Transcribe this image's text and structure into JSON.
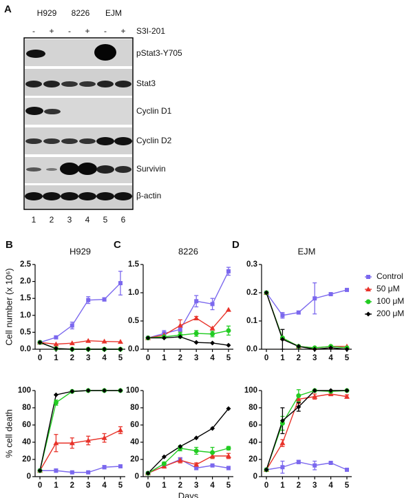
{
  "panel_a": {
    "label": "A",
    "cell_lines": [
      "H929",
      "8226",
      "EJM"
    ],
    "treatment": "S3I-201",
    "treatment_signs": [
      "-",
      "+",
      "-",
      "+",
      "-",
      "+"
    ],
    "blots": [
      "pStat3-Y705",
      "Stat3",
      "Cyclin D1",
      "Cyclin D2",
      "Survivin",
      "β-actin"
    ],
    "lanes": [
      "1",
      "2",
      "3",
      "4",
      "5",
      "6"
    ]
  },
  "chart_data": [
    {
      "type": "line",
      "panel": "B",
      "title": "H929",
      "ylabel": "Cell number (x 10⁶)",
      "x": [
        0,
        1,
        2,
        3,
        4,
        5
      ],
      "xlim": [
        -0.3,
        5.3
      ],
      "xticks": [
        0,
        1,
        2,
        3,
        4,
        5
      ],
      "ylim": [
        0,
        2.5
      ],
      "yticks": [
        {
          "value": 0,
          "label": "0.0"
        },
        0.5,
        {
          "value": 1,
          "label": "1.0"
        },
        1.5,
        {
          "value": 2,
          "label": "2.0"
        },
        2.5
      ],
      "series": [
        {
          "name": "Control",
          "color": "#7b68ee",
          "marker": "square",
          "values": [
            0.2,
            0.35,
            0.7,
            1.45,
            1.47,
            1.95
          ],
          "errors": [
            0,
            0.03,
            0.1,
            0.1,
            0.05,
            0.35
          ]
        },
        {
          "name": "50 μM",
          "color": "#e8332a",
          "marker": "triangle",
          "values": [
            0.2,
            0.15,
            0.18,
            0.25,
            0.23,
            0.22
          ]
        },
        {
          "name": "100 μM",
          "color": "#22cc22",
          "marker": "circle",
          "values": [
            0.2,
            0.02,
            0,
            0,
            0,
            0
          ]
        },
        {
          "name": "200 μM",
          "color": "#000000",
          "marker": "diamond",
          "values": [
            0.2,
            0.02,
            0,
            0,
            0,
            0
          ]
        }
      ]
    },
    {
      "type": "line",
      "panel": "C",
      "title": "8226",
      "x": [
        0,
        1,
        2,
        3,
        4,
        5
      ],
      "xlim": [
        -0.3,
        5.3
      ],
      "xticks": [
        0,
        1,
        2,
        3,
        4,
        5
      ],
      "ylim": [
        0,
        1.5
      ],
      "yticks": [
        {
          "value": 0,
          "label": "0.0"
        },
        0.5,
        {
          "value": 1,
          "label": "1.0"
        },
        1.5
      ],
      "series": [
        {
          "name": "Control",
          "color": "#7b68ee",
          "marker": "square",
          "values": [
            0.2,
            0.28,
            0.35,
            0.85,
            0.8,
            1.38
          ],
          "errors": [
            0,
            0.05,
            0.05,
            0.1,
            0.1,
            0.07
          ]
        },
        {
          "name": "50 μM",
          "color": "#e8332a",
          "marker": "triangle",
          "values": [
            0.2,
            0.25,
            0.42,
            0.55,
            0.37,
            0.7
          ],
          "errors": [
            0,
            0.05,
            0.1,
            0.03,
            0,
            0
          ]
        },
        {
          "name": "100 μM",
          "color": "#22cc22",
          "marker": "circle",
          "values": [
            0.2,
            0.22,
            0.25,
            0.28,
            0.27,
            0.33
          ],
          "errors": [
            0,
            0.03,
            0.05,
            0.05,
            0.05,
            0.08
          ]
        },
        {
          "name": "200 μM",
          "color": "#000000",
          "marker": "diamond",
          "values": [
            0.2,
            0.2,
            0.22,
            0.12,
            0.11,
            0.07
          ]
        }
      ]
    },
    {
      "type": "line",
      "panel": "D",
      "title": "EJM",
      "legend": "right",
      "x": [
        0,
        1,
        2,
        3,
        4,
        5
      ],
      "xlim": [
        -0.3,
        5.3
      ],
      "xticks": [
        0,
        1,
        2,
        3,
        4,
        5
      ],
      "ylim": [
        0,
        0.3
      ],
      "yticks": [
        {
          "value": 0,
          "label": "0.0"
        },
        0.1,
        0.2,
        0.3
      ],
      "series": [
        {
          "name": "Control",
          "color": "#7b68ee",
          "marker": "square",
          "values": [
            0.2,
            0.12,
            0.13,
            0.18,
            0.195,
            0.21
          ],
          "errors": [
            0,
            0.01,
            0.005,
            0.055,
            0.003,
            0.003
          ]
        },
        {
          "name": "50 μM",
          "color": "#e8332a",
          "marker": "triangle",
          "values": [
            0.2,
            0.04,
            0.01,
            0.005,
            0.01,
            0.01
          ]
        },
        {
          "name": "100 μM",
          "color": "#22cc22",
          "marker": "circle",
          "values": [
            0.2,
            0.04,
            0.01,
            0.005,
            0.01,
            0.005
          ]
        },
        {
          "name": "200 μM",
          "color": "#000000",
          "marker": "diamond",
          "values": [
            0.2,
            0.035,
            0.01,
            0,
            0.005,
            0
          ],
          "errors": [
            0,
            0.035,
            0,
            0,
            0,
            0
          ]
        }
      ]
    },
    {
      "type": "line",
      "ylabel": "% cell death",
      "x": [
        0,
        1,
        2,
        3,
        4,
        5
      ],
      "xlim": [
        -0.3,
        5.3
      ],
      "xticks": [
        0,
        1,
        2,
        3,
        4,
        5
      ],
      "ylim": [
        0,
        100
      ],
      "yticks": [
        0,
        20,
        40,
        60,
        80,
        100
      ],
      "series": [
        {
          "name": "Control",
          "color": "#7b68ee",
          "marker": "square",
          "values": [
            7,
            7,
            5,
            5,
            11,
            12
          ],
          "errors": [
            0,
            2,
            1,
            1,
            2,
            1
          ]
        },
        {
          "name": "50 μM",
          "color": "#e8332a",
          "marker": "triangle",
          "values": [
            7,
            39,
            39,
            42,
            45,
            54
          ],
          "errors": [
            0,
            10,
            6,
            5,
            5,
            4
          ]
        },
        {
          "name": "100 μM",
          "color": "#22cc22",
          "marker": "circle",
          "values": [
            7,
            86,
            99,
            100,
            100,
            100
          ],
          "errors": [
            0,
            3,
            0,
            0,
            0,
            0
          ]
        },
        {
          "name": "200 μM",
          "color": "#000000",
          "marker": "diamond",
          "values": [
            7,
            95,
            99,
            100,
            100,
            100
          ]
        }
      ]
    },
    {
      "type": "line",
      "xlabel": "Days",
      "x": [
        0,
        1,
        2,
        3,
        4,
        5
      ],
      "xlim": [
        -0.3,
        5.3
      ],
      "xticks": [
        0,
        1,
        2,
        3,
        4,
        5
      ],
      "ylim": [
        0,
        100
      ],
      "yticks": [
        0,
        20,
        40,
        60,
        80,
        100
      ],
      "series": [
        {
          "name": "Control",
          "color": "#7b68ee",
          "marker": "square",
          "values": [
            4,
            12,
            20,
            10,
            13,
            10
          ],
          "errors": [
            0,
            2,
            2,
            2,
            1,
            2
          ]
        },
        {
          "name": "50 μM",
          "color": "#e8332a",
          "marker": "triangle",
          "values": [
            4,
            12,
            19,
            14,
            24,
            24
          ],
          "errors": [
            0,
            2,
            3,
            2,
            3,
            3
          ]
        },
        {
          "name": "100 μM",
          "color": "#22cc22",
          "marker": "circle",
          "values": [
            4,
            15,
            33,
            30,
            28,
            33
          ],
          "errors": [
            0,
            2,
            3,
            4,
            6,
            2
          ]
        },
        {
          "name": "200 μM",
          "color": "#000000",
          "marker": "diamond",
          "values": [
            4,
            23,
            35,
            45,
            56,
            79
          ]
        }
      ]
    },
    {
      "type": "line",
      "x": [
        0,
        1,
        2,
        3,
        4,
        5
      ],
      "xlim": [
        -0.3,
        5.3
      ],
      "xticks": [
        0,
        1,
        2,
        3,
        4,
        5
      ],
      "ylim": [
        0,
        100
      ],
      "yticks": [
        0,
        20,
        40,
        60,
        80,
        100
      ],
      "series": [
        {
          "name": "Control",
          "color": "#7b68ee",
          "marker": "square",
          "values": [
            8,
            11,
            17,
            13,
            16,
            8
          ],
          "errors": [
            0,
            7,
            2,
            5,
            1,
            1
          ]
        },
        {
          "name": "50 μM",
          "color": "#e8332a",
          "marker": "triangle",
          "values": [
            8,
            39,
            90,
            93,
            96,
            93
          ],
          "errors": [
            0,
            4,
            5,
            3,
            2,
            2
          ]
        },
        {
          "name": "100 μM",
          "color": "#22cc22",
          "marker": "circle",
          "values": [
            8,
            62,
            94,
            100,
            99,
            100
          ],
          "errors": [
            0,
            8,
            7,
            0,
            1,
            0
          ]
        },
        {
          "name": "200 μM",
          "color": "#000000",
          "marker": "diamond",
          "values": [
            8,
            65,
            81,
            100,
            100,
            100
          ],
          "errors": [
            0,
            15,
            5,
            0,
            0,
            0
          ]
        }
      ]
    }
  ]
}
